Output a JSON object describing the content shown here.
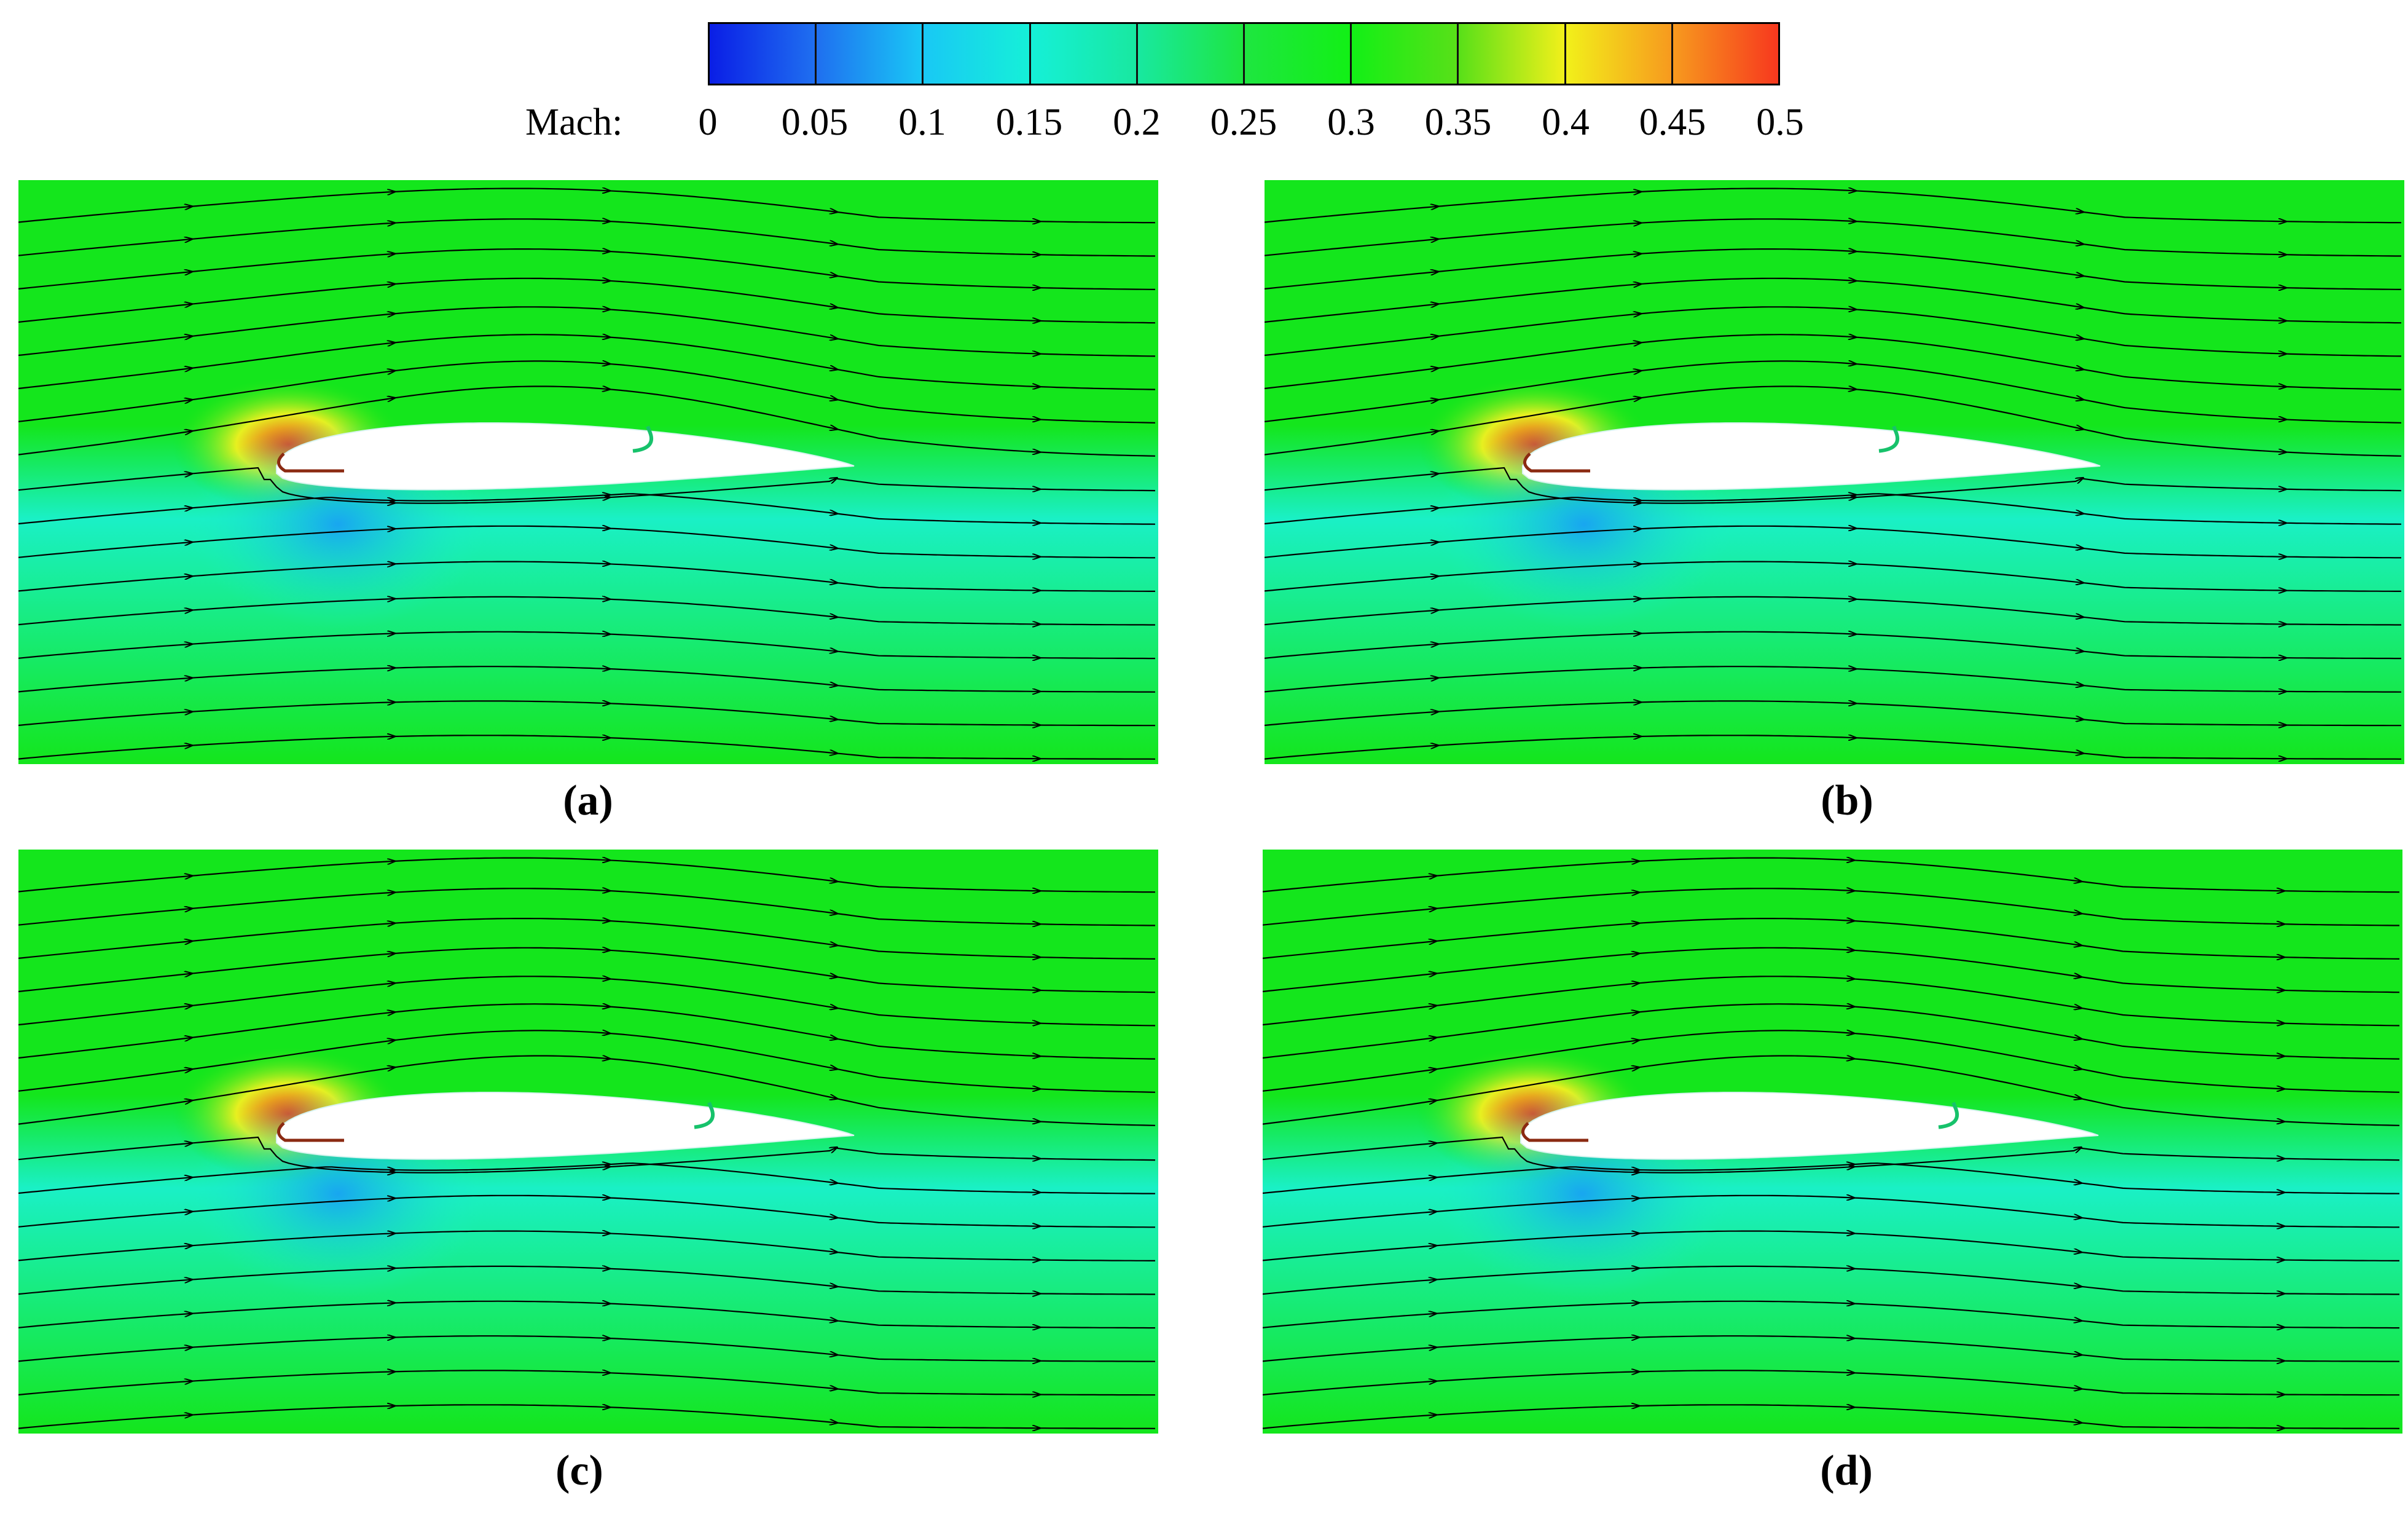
{
  "colorbar": {
    "label": "Mach:",
    "ticks": [
      "0",
      "0.05",
      "0.1",
      "0.15",
      "0.2",
      "0.25",
      "0.3",
      "0.35",
      "0.4",
      "0.45",
      "0.5"
    ],
    "colors": [
      "#0a1ee6",
      "#1f6ff0",
      "#19c8f5",
      "#15f0d8",
      "#18e8a0",
      "#1ee640",
      "#12f016",
      "#58e018",
      "#f2f01a",
      "#f79a1e",
      "#f7381e"
    ]
  },
  "panels": [
    {
      "caption": "(a)",
      "flap": "short"
    },
    {
      "caption": "(b)",
      "flap": "short"
    },
    {
      "caption": "(c)",
      "flap": "long"
    },
    {
      "caption": "(d)",
      "flap": "long"
    }
  ],
  "palette": {
    "freestream_green": "#14e61c",
    "lower_cyan": "#1af0c6",
    "upper_yellow": "#e7f020",
    "stagnation_red": "#e8401c",
    "streamline": "#000000",
    "airfoil": "#ffffff",
    "slat": "#8b2a12",
    "flap_hook": "#17c26b"
  }
}
